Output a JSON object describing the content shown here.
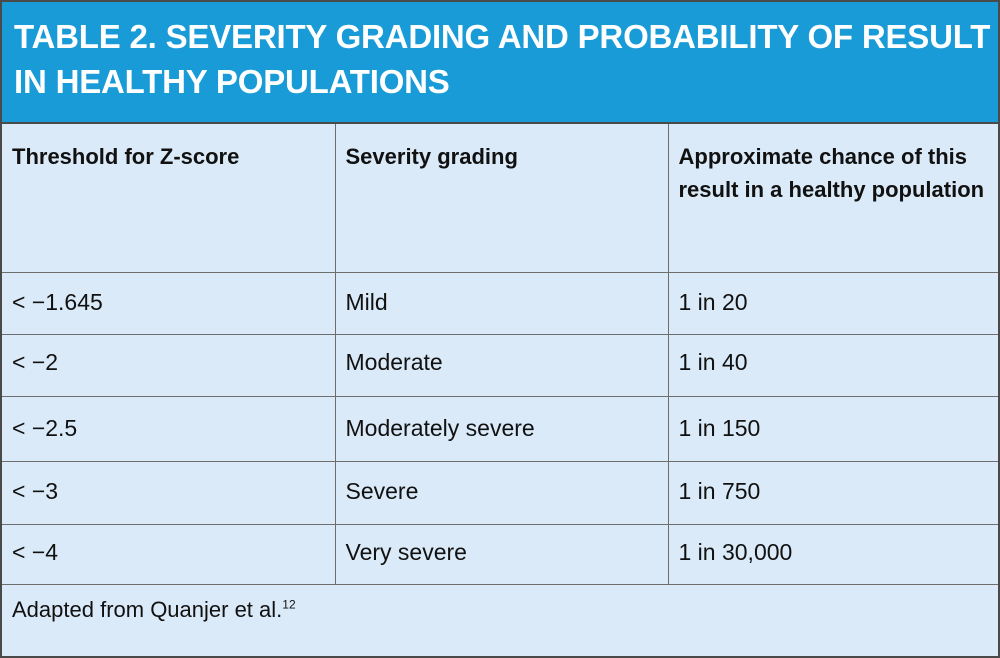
{
  "table": {
    "title_line1": "TABLE 2. SEVERITY GRADING AND PROBABILITY OF RESULT",
    "title_line2": "IN HEALTHY POPULATIONS",
    "headers": [
      "Threshold for Z-score",
      "Severity grading",
      "Approximate chance of this result in a healthy population"
    ],
    "rows": [
      {
        "threshold": "< −1.645",
        "severity": "Mild",
        "chance": "1 in 20"
      },
      {
        "threshold": "< −2",
        "severity": "Moderate",
        "chance": "1 in 40"
      },
      {
        "threshold": "< −2.5",
        "severity": "Moderately severe",
        "chance": "1 in 150"
      },
      {
        "threshold": "< −3",
        "severity": "Severe",
        "chance": "1 in 750"
      },
      {
        "threshold": "< −4",
        "severity": "Very severe",
        "chance": "1 in 30,000"
      }
    ],
    "footnote": "Adapted from Quanjer et al.",
    "footnote_ref": "12"
  },
  "colors": {
    "title_background": "#189bd7",
    "table_background": "#daeaf8",
    "border": "#4a4a4a"
  }
}
